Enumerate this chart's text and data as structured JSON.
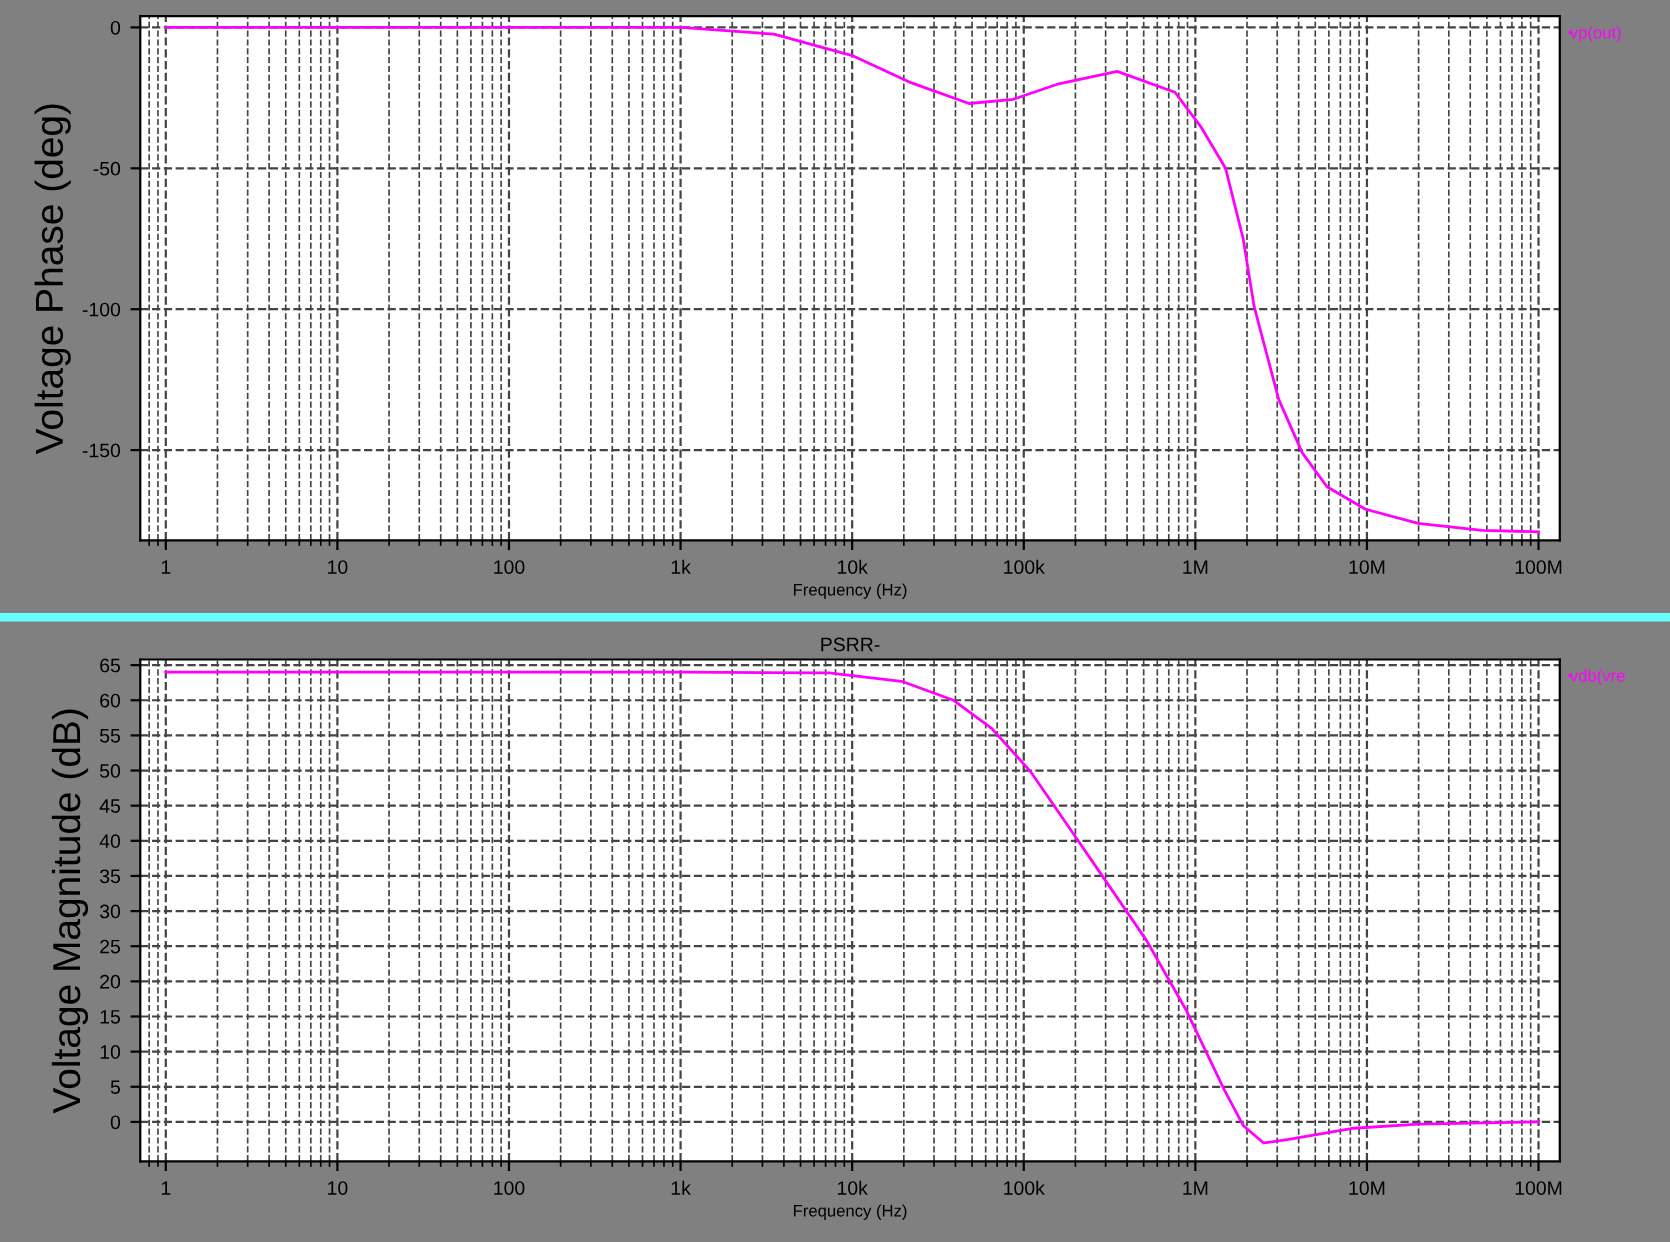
{
  "chart_data": [
    {
      "type": "line",
      "xlabel": "Frequency (Hz)",
      "ylabel": "Voltage Phase (deg)",
      "log": "x",
      "grid": true,
      "legend": "right",
      "marker": "none",
      "line_style": "solid",
      "xlim": [
        0.71,
        133000000.0
      ],
      "ylim": [
        -182,
        4
      ],
      "xticks": [
        1,
        10,
        100,
        {
          "value": 1000,
          "label": "1k"
        },
        {
          "value": 10000,
          "label": "10k"
        },
        {
          "value": 100000,
          "label": "100k"
        },
        {
          "value": 1000000,
          "label": "1M"
        },
        {
          "value": 10000000,
          "label": "10M"
        },
        {
          "value": 100000000,
          "label": "100M"
        }
      ],
      "yticks": [
        0,
        -50,
        -100,
        -150
      ],
      "series": [
        {
          "name": "vp(out)",
          "color": "#ff00ff",
          "x": [
            1,
            100,
            1000,
            3500,
            10000,
            22000,
            48000,
            87000,
            160000,
            350000,
            760000,
            1070000,
            1500000,
            1900000,
            2200000,
            3060000,
            4200000,
            5850000,
            9800000,
            19900000,
            46900000,
            100000000
          ],
          "values": [
            0,
            0,
            0,
            -2.4,
            -10,
            -19.6,
            -27,
            -25.5,
            -20,
            -15.6,
            -23,
            -35,
            -50,
            -75,
            -99,
            -132,
            -151,
            -163,
            -171,
            -176,
            -178.5,
            -179
          ]
        }
      ]
    },
    {
      "type": "line",
      "title": "PSRR-",
      "xlabel": "Frequency (Hz)",
      "ylabel": "Voltage Magnitude (dB)",
      "log": "x",
      "grid": true,
      "legend": "right",
      "marker": "none",
      "line_style": "solid",
      "xlim": [
        0.71,
        133000000.0
      ],
      "ylim": [
        -5.6,
        65.8
      ],
      "xticks": [
        1,
        10,
        100,
        {
          "value": 1000,
          "label": "1k"
        },
        {
          "value": 10000,
          "label": "10k"
        },
        {
          "value": 100000,
          "label": "100k"
        },
        {
          "value": 1000000,
          "label": "1M"
        },
        {
          "value": 10000000,
          "label": "10M"
        },
        {
          "value": 100000000,
          "label": "100M"
        }
      ],
      "yticks": [
        0,
        5,
        10,
        15,
        20,
        25,
        30,
        35,
        40,
        45,
        50,
        55,
        60,
        65
      ],
      "series": [
        {
          "name": "vdb(vre",
          "color": "#ff00ff",
          "x": [
            1,
            100,
            1000,
            7300,
            19400,
            39000,
            65000,
            110000,
            185000,
            310000,
            520000,
            880000,
            1480000,
            1900000,
            2500000,
            3500000,
            8400000,
            19900000,
            100000000
          ],
          "values": [
            64,
            64,
            64,
            63.9,
            62.7,
            60,
            56,
            49.8,
            41.8,
            33.8,
            25.8,
            16,
            4.5,
            -0.5,
            -3,
            -2.5,
            -0.9,
            -0.3,
            0
          ]
        }
      ]
    }
  ]
}
